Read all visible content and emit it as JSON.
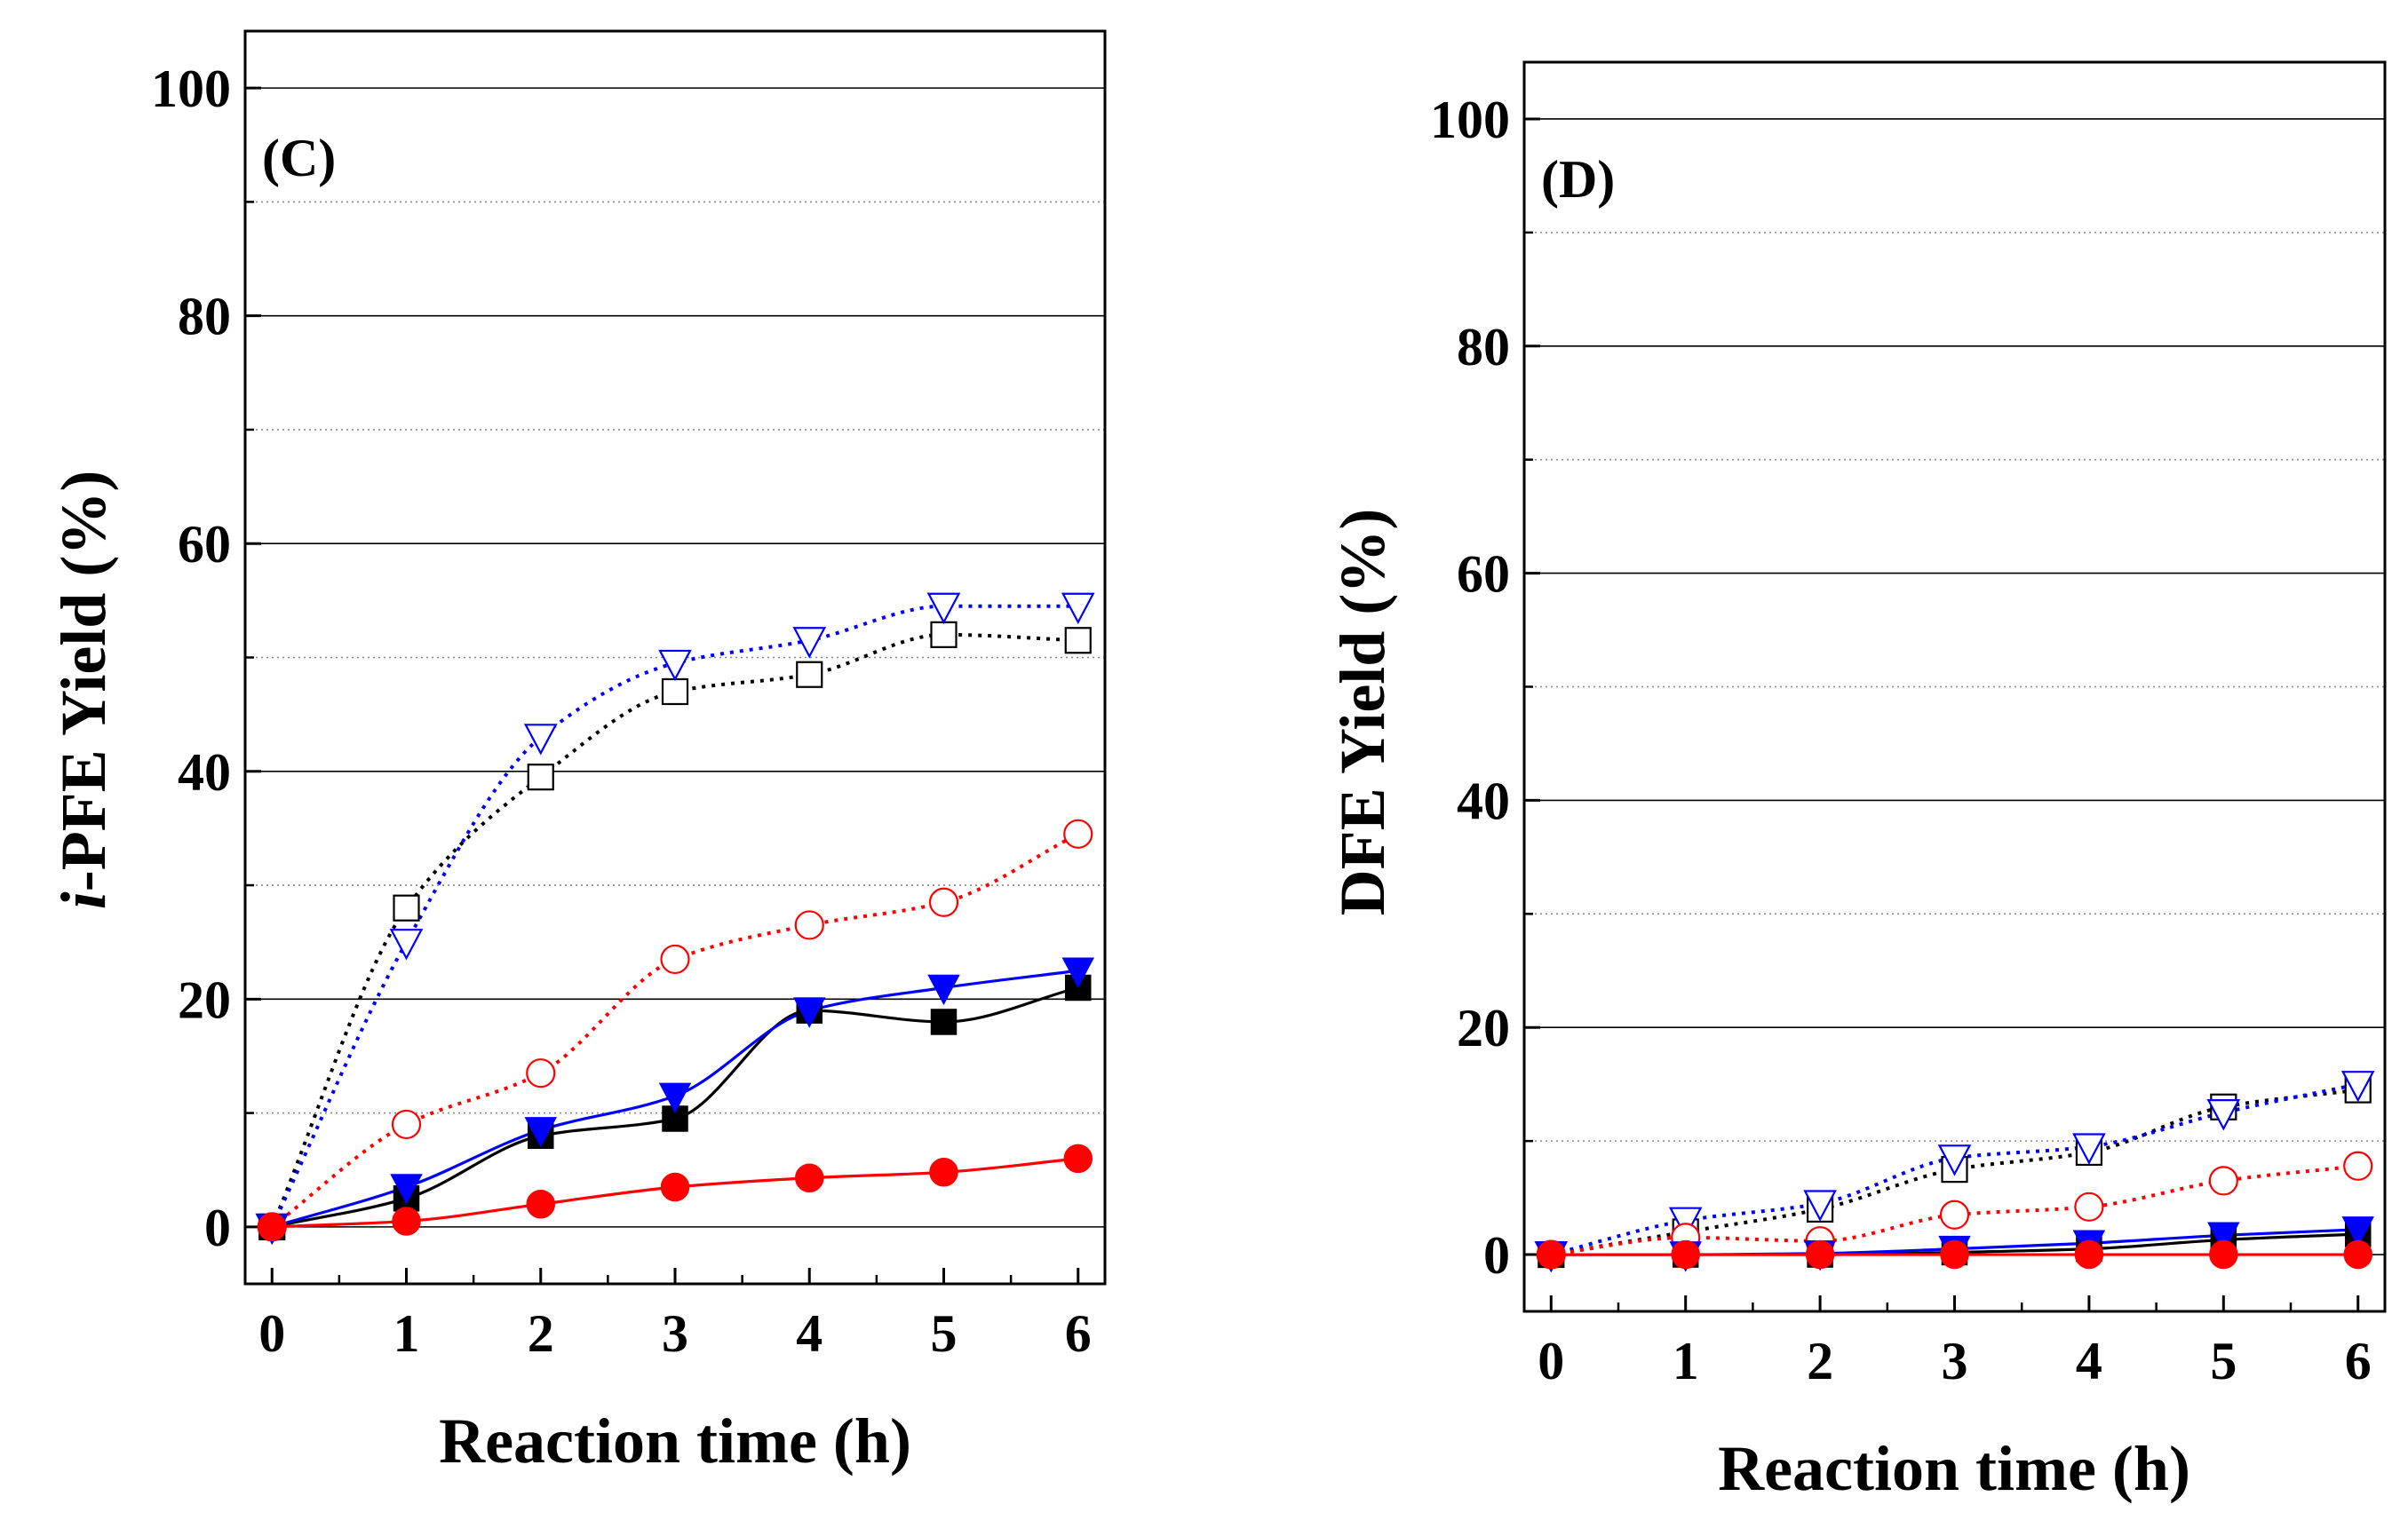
{
  "colors": {
    "black": "#000000",
    "blue": "#0000ff",
    "red": "#ff0000"
  },
  "chart_data": [
    {
      "type": "line",
      "panel_label": "(C)",
      "xlabel": "Reaction time (h)",
      "ylabel_prefix": "i",
      "ylabel_rest": "-PFE Yield (%)",
      "xlim": [
        -0.2,
        6.2
      ],
      "ylim": [
        -5,
        105
      ],
      "xticks": [
        0,
        1,
        2,
        3,
        4,
        5,
        6
      ],
      "yticks": [
        0,
        20,
        40,
        60,
        80,
        100
      ],
      "grid": "horizontal",
      "x": [
        0,
        1,
        2,
        3,
        4,
        5,
        6
      ],
      "series": [
        {
          "name": "open-square",
          "marker": "square",
          "filled": false,
          "color": "#000000",
          "dash": true,
          "values": [
            0,
            28,
            39.5,
            47,
            48.5,
            52,
            51.5
          ]
        },
        {
          "name": "open-triangle",
          "marker": "triangle-down",
          "filled": false,
          "color": "#0000ff",
          "dash": true,
          "values": [
            0,
            25,
            43,
            49.5,
            51.5,
            54.5,
            54.5
          ]
        },
        {
          "name": "open-circle",
          "marker": "circle",
          "filled": false,
          "color": "#ff0000",
          "dash": true,
          "values": [
            0,
            9,
            13.5,
            23.5,
            26.5,
            28.5,
            34.5
          ]
        },
        {
          "name": "filled-square",
          "marker": "square",
          "filled": true,
          "color": "#000000",
          "dash": false,
          "values": [
            0,
            2.5,
            8,
            9.5,
            19,
            18,
            21
          ]
        },
        {
          "name": "filled-triangle",
          "marker": "triangle-down",
          "filled": true,
          "color": "#0000ff",
          "dash": false,
          "values": [
            0,
            3.5,
            8.5,
            11.5,
            19,
            21,
            22.5
          ]
        },
        {
          "name": "filled-circle",
          "marker": "circle",
          "filled": true,
          "color": "#ff0000",
          "dash": false,
          "values": [
            0,
            0.5,
            2,
            3.5,
            4.3,
            4.8,
            6
          ]
        }
      ]
    },
    {
      "type": "line",
      "panel_label": "(D)",
      "xlabel": "Reaction time (h)",
      "ylabel_prefix": "",
      "ylabel_rest": "DFE Yield (%)",
      "xlim": [
        -0.2,
        6.2
      ],
      "ylim": [
        -5,
        105
      ],
      "xticks": [
        0,
        1,
        2,
        3,
        4,
        5,
        6
      ],
      "yticks": [
        0,
        20,
        40,
        60,
        80,
        100
      ],
      "grid": "horizontal",
      "x": [
        0,
        1,
        2,
        3,
        4,
        5,
        6
      ],
      "series": [
        {
          "name": "open-square",
          "marker": "square",
          "filled": false,
          "color": "#000000",
          "dash": true,
          "values": [
            0,
            2,
            4,
            7.5,
            9,
            13,
            14.5
          ]
        },
        {
          "name": "open-triangle",
          "marker": "triangle-down",
          "filled": false,
          "color": "#0000ff",
          "dash": true,
          "values": [
            0,
            3,
            4.5,
            8.5,
            9.5,
            12.5,
            15
          ]
        },
        {
          "name": "open-circle",
          "marker": "circle",
          "filled": false,
          "color": "#ff0000",
          "dash": true,
          "values": [
            0,
            1.5,
            1.2,
            3.5,
            4.2,
            6.5,
            7.8
          ]
        },
        {
          "name": "filled-square",
          "marker": "square",
          "filled": true,
          "color": "#000000",
          "dash": false,
          "values": [
            0,
            0,
            0,
            0.2,
            0.5,
            1.3,
            1.8
          ]
        },
        {
          "name": "filled-triangle",
          "marker": "triangle-down",
          "filled": true,
          "color": "#0000ff",
          "dash": false,
          "values": [
            0,
            0,
            0.1,
            0.5,
            1,
            1.7,
            2.2
          ]
        },
        {
          "name": "filled-circle",
          "marker": "circle",
          "filled": true,
          "color": "#ff0000",
          "dash": false,
          "values": [
            0,
            0,
            0,
            0,
            0,
            0,
            0
          ]
        }
      ]
    }
  ]
}
